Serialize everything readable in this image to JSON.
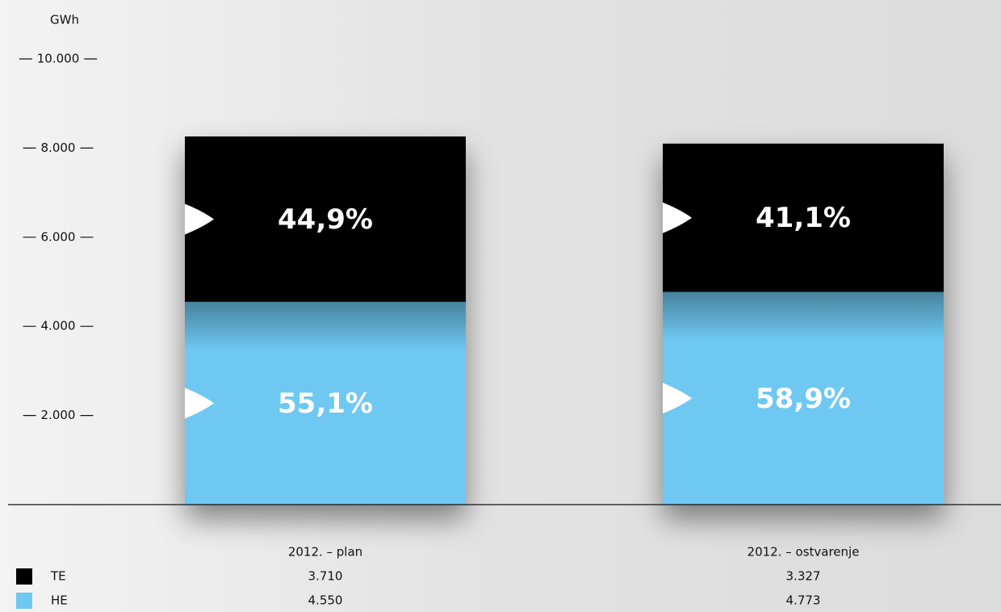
{
  "chart_data": {
    "type": "stacked_bar",
    "y_unit": "GWh",
    "categories": [
      "2012. – plan",
      "2012. – ostvarenje"
    ],
    "series": [
      {
        "name": "HE",
        "color": "#6ec8f2",
        "values": [
          4550,
          4773
        ],
        "value_labels": [
          "4.550",
          "4.773"
        ],
        "percent_values": [
          55.1,
          58.9
        ],
        "percent_labels": [
          "55,1%",
          "58,9%"
        ]
      },
      {
        "name": "TE",
        "color": "#000000",
        "values": [
          3710,
          3327
        ],
        "value_labels": [
          "3.710",
          "3.327"
        ],
        "percent_values": [
          44.9,
          41.1
        ],
        "percent_labels": [
          "44,9%",
          "41,1%"
        ]
      }
    ],
    "legend_order": [
      1,
      0
    ],
    "ylim": [
      0,
      10000
    ],
    "yticks": [
      {
        "value": 2000,
        "label": "2.000"
      },
      {
        "value": 4000,
        "label": "4.000"
      },
      {
        "value": 6000,
        "label": "6.000"
      },
      {
        "value": 8000,
        "label": "8.000"
      },
      {
        "value": 10000,
        "label": "10.000"
      }
    ]
  }
}
